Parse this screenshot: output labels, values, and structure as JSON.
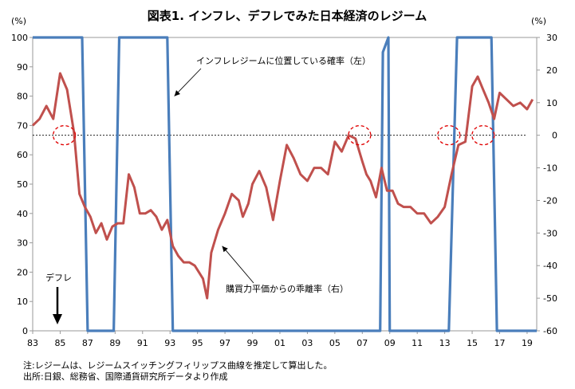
{
  "chart_data": {
    "type": "line",
    "title": "図表1. インフレ、デフレでみた日本経済のレジーム",
    "left_axis_unit": "(%)",
    "right_axis_unit": "(%)",
    "left_ylim": [
      0,
      100
    ],
    "left_ticks": [
      0,
      10,
      20,
      30,
      40,
      50,
      60,
      70,
      80,
      90,
      100
    ],
    "right_ylim": [
      -60,
      30
    ],
    "right_ticks": [
      -60,
      -50,
      -40,
      -30,
      -20,
      -10,
      0,
      10,
      20,
      30
    ],
    "xlim": [
      1983.0,
      2019.7
    ],
    "x_ticks": [
      {
        "x": 1983.0,
        "label": "83"
      },
      {
        "x": 1985.0,
        "label": "85"
      },
      {
        "x": 1987.0,
        "label": "87"
      },
      {
        "x": 1989.0,
        "label": "89"
      },
      {
        "x": 1991.0,
        "label": "91"
      },
      {
        "x": 1993.0,
        "label": "93"
      },
      {
        "x": 1995.0,
        "label": "95"
      },
      {
        "x": 1997.0,
        "label": "97"
      },
      {
        "x": 1999.0,
        "label": "99"
      },
      {
        "x": 2001.0,
        "label": "01"
      },
      {
        "x": 2003.0,
        "label": "03"
      },
      {
        "x": 2005.0,
        "label": "05"
      },
      {
        "x": 2007.0,
        "label": "07"
      },
      {
        "x": 2009.0,
        "label": "09"
      },
      {
        "x": 2011.0,
        "label": "11"
      },
      {
        "x": 2013.0,
        "label": "13"
      },
      {
        "x": 2015.0,
        "label": "15"
      },
      {
        "x": 2017.0,
        "label": "17"
      },
      {
        "x": 2019.0,
        "label": "19"
      }
    ],
    "series": [
      {
        "name": "インフレレジームに位置している確率（左）",
        "axis": "left",
        "color": "#4a7ebb",
        "x": [
          1983.0,
          1986.6,
          1987.0,
          1988.9,
          1989.3,
          1992.8,
          1993.2,
          2008.3,
          2008.5,
          2008.9,
          2009.0,
          2013.3,
          2013.9,
          2016.4,
          2016.8,
          2019.7
        ],
        "y": [
          100,
          100,
          0,
          0,
          100,
          100,
          0,
          0,
          95,
          100,
          0,
          0,
          100,
          100,
          0,
          0
        ]
      },
      {
        "name": "購買力平価からの乖離率（右）",
        "axis": "right",
        "color": "#c0504d",
        "x": [
          1983.0,
          1983.5,
          1984.0,
          1984.5,
          1985.0,
          1985.5,
          1986.0,
          1986.4,
          1986.8,
          1987.2,
          1987.6,
          1988.0,
          1988.4,
          1988.8,
          1989.2,
          1989.6,
          1990.0,
          1990.4,
          1990.8,
          1991.2,
          1991.6,
          1992.0,
          1992.4,
          1992.8,
          1993.2,
          1993.6,
          1994.0,
          1994.4,
          1994.8,
          1995.1,
          1995.4,
          1995.7,
          1996.0,
          1996.5,
          1997.0,
          1997.5,
          1998.0,
          1998.3,
          1998.7,
          1999.0,
          1999.5,
          2000.0,
          2000.5,
          2001.0,
          2001.5,
          2002.0,
          2002.5,
          2003.0,
          2003.5,
          2004.0,
          2004.5,
          2005.0,
          2005.5,
          2006.0,
          2006.5,
          2007.0,
          2007.3,
          2007.6,
          2008.0,
          2008.4,
          2008.8,
          2009.2,
          2009.6,
          2010.0,
          2010.5,
          2011.0,
          2011.5,
          2012.0,
          2012.5,
          2013.0,
          2013.5,
          2014.0,
          2014.5,
          2015.0,
          2015.4,
          2015.8,
          2016.2,
          2016.6,
          2017.0,
          2017.5,
          2018.0,
          2018.5,
          2019.0,
          2019.4
        ],
        "y": [
          3,
          5,
          9,
          5,
          19,
          14,
          1,
          -18,
          -22,
          -25,
          -30,
          -27,
          -32,
          -28,
          -27,
          -27,
          -12,
          -16,
          -24,
          -24,
          -23,
          -25,
          -29,
          -26,
          -34,
          -37,
          -39,
          -39,
          -40,
          -42,
          -44,
          -50,
          -36,
          -29,
          -24,
          -18,
          -20,
          -25,
          -21,
          -15,
          -11,
          -16,
          -26,
          -14,
          -3,
          -7,
          -12,
          -14,
          -10,
          -10,
          -12,
          -2,
          -5,
          0,
          -1,
          -8,
          -12,
          -14,
          -19,
          -10,
          -17,
          -17,
          -21,
          -22,
          -22,
          -24,
          -24,
          -27,
          -25,
          -22,
          -12,
          -3,
          -2,
          15,
          18,
          14,
          10,
          5,
          13,
          11,
          9,
          10,
          8,
          11
        ]
      }
    ],
    "reference_line": {
      "axis": "right",
      "value": 0,
      "style": "dotted"
    },
    "markers": [
      {
        "x": 1985.3,
        "y": 0,
        "axis": "right",
        "shape": "dashed-circle"
      },
      {
        "x": 2006.8,
        "y": 0,
        "axis": "right",
        "shape": "dashed-circle"
      },
      {
        "x": 2013.3,
        "y": 0,
        "axis": "right",
        "shape": "dashed-circle"
      },
      {
        "x": 2015.8,
        "y": 0,
        "axis": "right",
        "shape": "dashed-circle"
      }
    ],
    "annotations": [
      {
        "id": "inflation",
        "text": "インフレレジームに位置している確率（左）",
        "target_x": 1993.2,
        "target_y": 80,
        "target_axis": "left"
      },
      {
        "id": "ppp",
        "text": "購買力平価からの乖離率（右）",
        "target_x": 1996.8,
        "target_y": -34,
        "target_axis": "right"
      },
      {
        "id": "deflation",
        "text": "デフレ"
      }
    ]
  },
  "notes": {
    "note1": "注:レジームは、レジームスイッチングフィリップス曲線を推定して算出した。",
    "note2": "出所:日銀、総務省、国際通貨研究所データより作成"
  }
}
